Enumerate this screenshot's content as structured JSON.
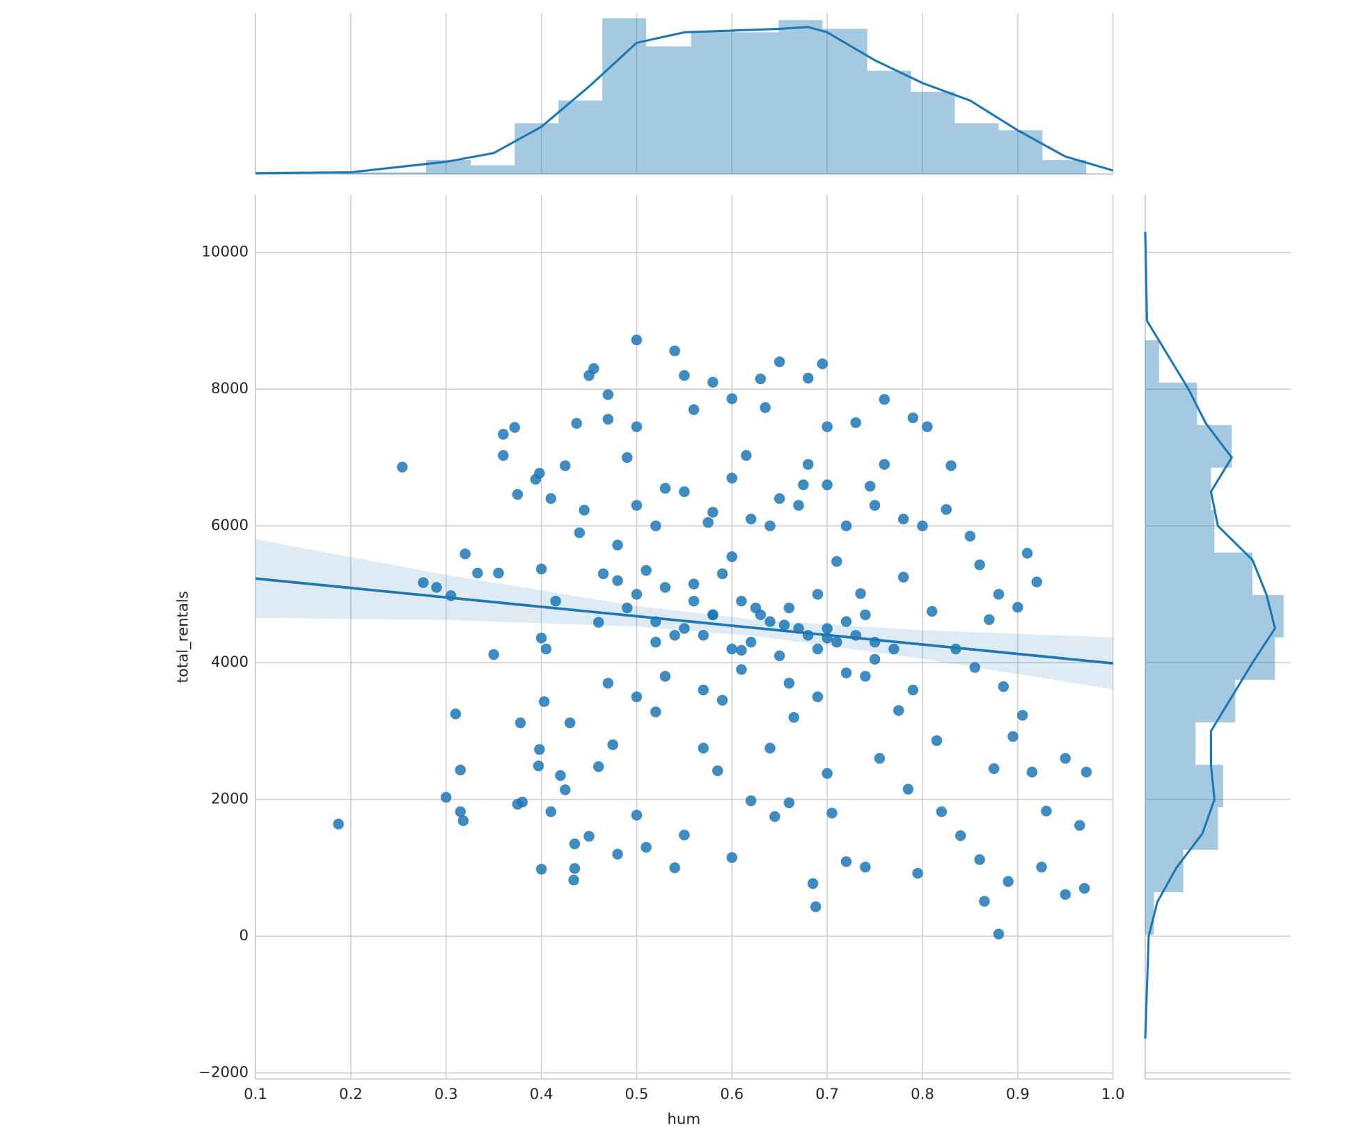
{
  "chart_data": [
    {
      "type": "scatter",
      "color": "#1f77b4",
      "x_label": "hum",
      "y_label": "total_rentals",
      "grid": true,
      "xlim": [
        0.1,
        1.0
      ],
      "ylim": [
        -2090,
        10840
      ],
      "xticks": [
        0.1,
        0.2,
        0.3,
        0.4,
        0.5,
        0.6,
        0.7,
        0.8,
        0.9,
        {
          "value": 1,
          "label": "1.0"
        }
      ],
      "yticks": [
        {
          "value": -2000,
          "label": "−2000"
        },
        0,
        2000,
        4000,
        6000,
        8000,
        10000
      ],
      "x": [
        0.187,
        0.254,
        0.276,
        0.29,
        0.305,
        0.3,
        0.31,
        0.315,
        0.315,
        0.318,
        0.32,
        0.333,
        0.35,
        0.355,
        0.36,
        0.36,
        0.372,
        0.375,
        0.378,
        0.375,
        0.38,
        0.394,
        0.398,
        0.4,
        0.4,
        0.4,
        0.398,
        0.397,
        0.41,
        0.405,
        0.403,
        0.41,
        0.415,
        0.42,
        0.425,
        0.43,
        0.425,
        0.437,
        0.44,
        0.435,
        0.434,
        0.435,
        0.45,
        0.445,
        0.455,
        0.45,
        0.46,
        0.46,
        0.465,
        0.47,
        0.47,
        0.475,
        0.48,
        0.48,
        0.49,
        0.5,
        0.5,
        0.5,
        0.5,
        0.51,
        0.51,
        0.52,
        0.52,
        0.53,
        0.54,
        0.54,
        0.54,
        0.55,
        0.55,
        0.56,
        0.56,
        0.57,
        0.575,
        0.58,
        0.58,
        0.585,
        0.59,
        0.6,
        0.6,
        0.6,
        0.61,
        0.615,
        0.62,
        0.625,
        0.63,
        0.635,
        0.64,
        0.64,
        0.645,
        0.65,
        0.655,
        0.66,
        0.665,
        0.67,
        0.675,
        0.68,
        0.685,
        0.688,
        0.69,
        0.695,
        0.7,
        0.7,
        0.7,
        0.705,
        0.71,
        0.72,
        0.72,
        0.73,
        0.735,
        0.74,
        0.745,
        0.75,
        0.755,
        0.76,
        0.76,
        0.77,
        0.775,
        0.78,
        0.785,
        0.79,
        0.795,
        0.8,
        0.805,
        0.81,
        0.815,
        0.82,
        0.825,
        0.83,
        0.835,
        0.84,
        0.85,
        0.855,
        0.86,
        0.86,
        0.865,
        0.87,
        0.875,
        0.88,
        0.88,
        0.885,
        0.89,
        0.895,
        0.9,
        0.905,
        0.91,
        0.915,
        0.92,
        0.925,
        0.93,
        0.95,
        0.95,
        0.965,
        0.972,
        0.97,
        0.48,
        0.49,
        0.5,
        0.52,
        0.53,
        0.55,
        0.56,
        0.57,
        0.58,
        0.59,
        0.6,
        0.61,
        0.62,
        0.63,
        0.64,
        0.65,
        0.66,
        0.67,
        0.68,
        0.69,
        0.7,
        0.71,
        0.72,
        0.73,
        0.74,
        0.75,
        0.5,
        0.52,
        0.55,
        0.58,
        0.6,
        0.62,
        0.65,
        0.68,
        0.7,
        0.72,
        0.75,
        0.78,
        0.47,
        0.53,
        0.57,
        0.61,
        0.66,
        0.69,
        0.74,
        0.79
      ],
      "values": [
        1640,
        6860,
        5170,
        5100,
        4980,
        2030,
        3250,
        2430,
        1820,
        1690,
        5590,
        5310,
        4120,
        5310,
        7340,
        7030,
        7440,
        6460,
        3120,
        1930,
        1960,
        6680,
        6770,
        5370,
        4360,
        980,
        2730,
        2490,
        6400,
        4200,
        3430,
        1820,
        4900,
        2350,
        2140,
        3120,
        6880,
        7500,
        5900,
        990,
        820,
        1350,
        1460,
        6230,
        8300,
        8200,
        4590,
        2480,
        5300,
        7560,
        7920,
        2800,
        1200,
        5720,
        7000,
        8720,
        7450,
        3500,
        1770,
        5350,
        1300,
        4300,
        3280,
        6550,
        8560,
        4400,
        1000,
        8200,
        1480,
        7700,
        5150,
        2750,
        6050,
        8100,
        4700,
        2420,
        3450,
        7860,
        5550,
        1150,
        4180,
        7030,
        1980,
        4800,
        8150,
        7730,
        6000,
        2750,
        1750,
        8400,
        4550,
        1950,
        3200,
        6300,
        6600,
        8160,
        770,
        430,
        5000,
        8370,
        7450,
        4360,
        2380,
        1800,
        5480,
        3850,
        1090,
        7510,
        5010,
        1010,
        6580,
        4050,
        2600,
        7850,
        6900,
        4200,
        3300,
        5250,
        2150,
        7580,
        920,
        6000,
        7450,
        4750,
        2860,
        1820,
        6240,
        6880,
        4200,
        1470,
        5850,
        3930,
        5430,
        1120,
        510,
        4630,
        2450,
        5000,
        30,
        3650,
        800,
        2920,
        4810,
        3230,
        5600,
        2400,
        5180,
        1010,
        1830,
        2600,
        610,
        1620,
        2400,
        700,
        5200,
        4800,
        5000,
        4600,
        5100,
        4500,
        4900,
        4400,
        4700,
        5300,
        4200,
        4900,
        4300,
        4700,
        4600,
        4100,
        4800,
        4500,
        4400,
        4200,
        4500,
        4300,
        4600,
        4400,
        4700,
        4300,
        6300,
        6000,
        6500,
        6200,
        6700,
        6100,
        6400,
        6900,
        6600,
        6000,
        6300,
        6100,
        3700,
        3800,
        3600,
        3900,
        3700,
        3500,
        3800,
        3600
      ],
      "regression": {
        "x": [
          0.1,
          1.0
        ],
        "y": [
          5230,
          3990
        ],
        "ci_x": [
          0.1,
          0.3,
          0.5,
          0.63,
          0.8,
          1.0
        ],
        "ci_lower": [
          4655,
          4624,
          4529,
          4380,
          4055,
          3610
        ],
        "ci_upper": [
          5805,
          5284,
          4829,
          4620,
          4475,
          4370
        ]
      }
    },
    {
      "type": "histogram",
      "color": "#1f77b4",
      "bins": [
        0.187,
        0.233,
        0.279,
        0.326,
        0.372,
        0.418,
        0.464,
        0.51,
        0.557,
        0.603,
        0.649,
        0.695,
        0.742,
        0.788,
        0.834,
        0.88,
        0.926,
        0.972
      ],
      "values": [
        1,
        1,
        8,
        5,
        29,
        42,
        89,
        73,
        82,
        81,
        88,
        83,
        59,
        47,
        29,
        25,
        8
      ],
      "ylim": [
        0,
        92
      ],
      "kde": {
        "x": [
          0.1,
          0.2,
          0.3,
          0.35,
          0.4,
          0.45,
          0.5,
          0.55,
          0.6,
          0.65,
          0.68,
          0.7,
          0.75,
          0.8,
          0.85,
          0.9,
          0.95,
          1.0
        ],
        "values": [
          0.5,
          1,
          7,
          12,
          27,
          50,
          75,
          81,
          82,
          83,
          84,
          81,
          65,
          52,
          42,
          25,
          10,
          2
        ]
      }
    },
    {
      "type": "histogram_horizontal",
      "color": "#1f77b4",
      "bins": [
        22,
        643,
        1264,
        1885,
        2506,
        3127,
        3748,
        4369,
        4990,
        5611,
        6232,
        6853,
        7474,
        8095,
        8714
      ],
      "values": [
        5,
        22,
        42,
        45,
        29,
        52,
        75,
        80,
        62,
        40,
        38,
        50,
        30,
        8
      ],
      "xlim": [
        0,
        84
      ],
      "kde": {
        "y": [
          -1500,
          0,
          500,
          1000,
          1500,
          2000,
          2500,
          3000,
          3500,
          4000,
          4500,
          5000,
          5500,
          6000,
          6500,
          7000,
          7500,
          8000,
          9000,
          10300
        ],
        "values": [
          0,
          2,
          7,
          18,
          33,
          40,
          38,
          38,
          50,
          62,
          75,
          70,
          62,
          42,
          38,
          50,
          35,
          25,
          1,
          0
        ]
      }
    }
  ]
}
